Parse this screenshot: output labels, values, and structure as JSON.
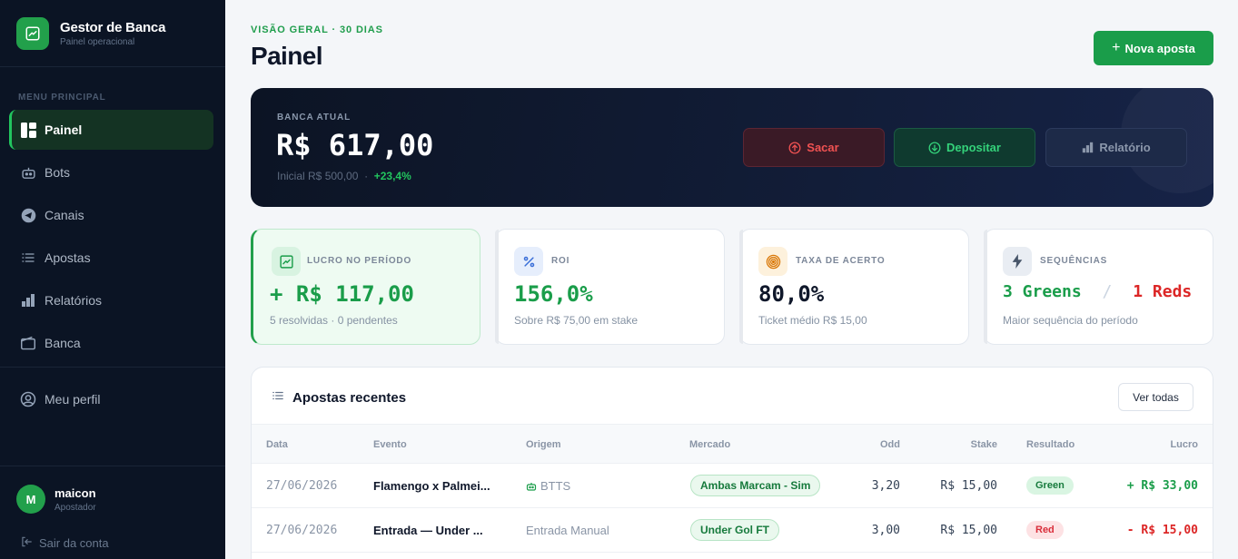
{
  "app": {
    "name": "Gestor de Banca",
    "subtitle": "Painel operacional"
  },
  "sidebar": {
    "section_label": "MENU PRINCIPAL",
    "items": [
      {
        "label": "Painel",
        "icon": "dashboard-icon",
        "active": true
      },
      {
        "label": "Bots",
        "icon": "robot-icon"
      },
      {
        "label": "Canais",
        "icon": "telegram-icon"
      },
      {
        "label": "Apostas",
        "icon": "list-icon"
      },
      {
        "label": "Relatórios",
        "icon": "bar-chart-icon"
      },
      {
        "label": "Banca",
        "icon": "wallet-icon"
      }
    ],
    "profile_label": "Meu perfil",
    "user": {
      "initial": "M",
      "name": "maicon",
      "role": "Apostador"
    },
    "logout_label": "Sair da conta"
  },
  "header": {
    "eyebrow": "VISÃO GERAL · 30 DIAS",
    "title": "Painel",
    "new_bet_label": "Nova aposta"
  },
  "balance": {
    "label": "BANCA ATUAL",
    "value": "R$ 617,00",
    "initial": "Inicial R$ 500,00",
    "separator": "·",
    "growth": "+23,4%",
    "actions": {
      "withdraw": "Sacar",
      "deposit": "Depositar",
      "report": "Relatório"
    }
  },
  "kpis": {
    "profit": {
      "label": "LUCRO NO PERÍODO",
      "value": "+ R$ 117,00",
      "sub": "5 resolvidas · 0 pendentes"
    },
    "roi": {
      "label": "ROI",
      "value": "156,0%",
      "sub": "Sobre R$ 75,00 em stake"
    },
    "hit_rate": {
      "label": "TAXA DE ACERTO",
      "value": "80,0%",
      "sub": "Ticket médio R$ 15,00"
    },
    "streaks": {
      "label": "SEQUÊNCIAS",
      "greens": "3 Greens",
      "separator": "/",
      "reds": "1 Reds",
      "sub": "Maior sequência do período"
    }
  },
  "recent_bets": {
    "title": "Apostas recentes",
    "see_all": "Ver todas",
    "columns": {
      "date": "Data",
      "event": "Evento",
      "origin": "Origem",
      "market": "Mercado",
      "odd": "Odd",
      "stake": "Stake",
      "result": "Resultado",
      "profit": "Lucro"
    },
    "rows": [
      {
        "date": "27/06/2026",
        "event": "Flamengo x Palmei...",
        "origin": "BTTS",
        "origin_is_bot": true,
        "market": "Ambas Marcam - Sim",
        "odd": "3,20",
        "stake": "R$ 15,00",
        "result": "Green",
        "profit": "+ R$ 33,00"
      },
      {
        "date": "27/06/2026",
        "event": "Entrada — Under ...",
        "origin": "Entrada Manual",
        "origin_is_bot": false,
        "market": "Under Gol FT",
        "odd": "3,00",
        "stake": "R$ 15,00",
        "result": "Red",
        "profit": "- R$ 15,00"
      }
    ]
  },
  "colors": {
    "accent": "#1a9d4a",
    "negative": "#dc2626",
    "sidebar_bg": "#0b1424"
  }
}
